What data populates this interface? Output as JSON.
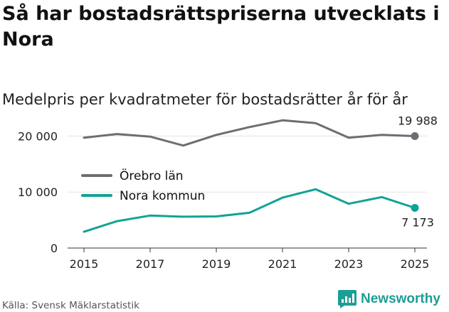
{
  "chart_data": {
    "type": "line",
    "title": "Så har bostadsrättspriserna utvecklats i Nora",
    "subtitle": "Medelpris per kvadratmeter för bostadsrätter år för år",
    "x": [
      2015,
      2016,
      2017,
      2018,
      2019,
      2020,
      2021,
      2022,
      2023,
      2024,
      2025
    ],
    "series": [
      {
        "name": "Örebro län",
        "color": "#6d6d73",
        "values": [
          19700,
          20350,
          19900,
          18300,
          20200,
          21600,
          22800,
          22300,
          19700,
          20200,
          19988
        ],
        "end_label": "19 988"
      },
      {
        "name": "Nora kommun",
        "color": "#0fa396",
        "values": [
          2900,
          4800,
          5800,
          5600,
          5650,
          6300,
          9000,
          10500,
          7900,
          9100,
          7173
        ],
        "end_label": "7 173"
      }
    ],
    "x_ticks": [
      "2015",
      "2017",
      "2019",
      "2021",
      "2023",
      "2025"
    ],
    "y_ticks": [
      "0",
      "10 000",
      "20 000"
    ],
    "ylim": [
      0,
      25000
    ],
    "xlim": [
      2015,
      2025
    ],
    "grid": true,
    "legend": [
      "Örebro län",
      "Nora kommun"
    ]
  },
  "footer": {
    "source": "Källa: Svensk Mäklarstatistik",
    "brand_name": "Newsworthy",
    "brand_icon": "newsworthy-logo-icon",
    "brand_color": "#1b9e95"
  },
  "colors": {
    "axis": "#333333",
    "grid": "#e3e3e3",
    "text": "#111111"
  }
}
